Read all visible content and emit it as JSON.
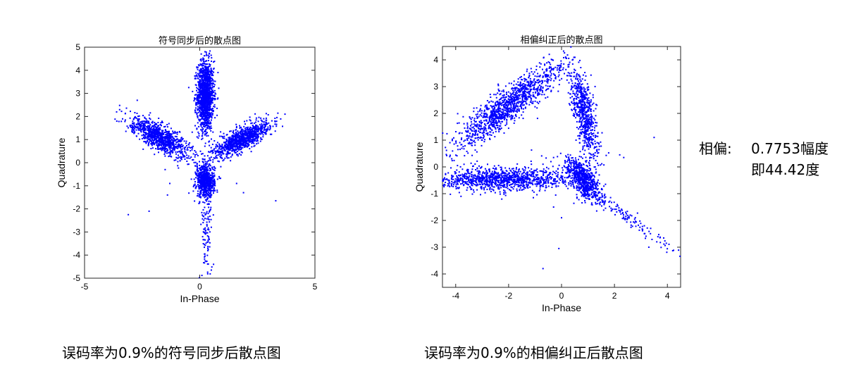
{
  "chart_data": [
    {
      "type": "scatter",
      "title": "符号同步后的散点图",
      "xlabel": "In-Phase",
      "ylabel": "Quadrature",
      "xlim": [
        -5,
        5
      ],
      "ylim": [
        -5,
        5
      ],
      "xticks": [
        -5,
        0,
        5
      ],
      "yticks": [
        -5,
        -4,
        -3,
        -2,
        -1,
        0,
        1,
        2,
        3,
        4,
        5
      ],
      "grid": false,
      "marker_color": "#0000ff",
      "clusters": [
        {
          "cx": 0.25,
          "cy": 2.9,
          "rx": 0.18,
          "ry": 0.75,
          "angle": 0,
          "n": 1400
        },
        {
          "cx": -1.75,
          "cy": 1.1,
          "rx": 0.25,
          "ry": 0.75,
          "angle": -60,
          "n": 1000
        },
        {
          "cx": 1.8,
          "cy": 1.0,
          "rx": 0.22,
          "ry": 0.65,
          "angle": 60,
          "n": 1000
        },
        {
          "cx": 0.25,
          "cy": -0.8,
          "rx": 0.2,
          "ry": 0.35,
          "angle": 0,
          "n": 700
        },
        {
          "cx": 0.3,
          "cy": -2.8,
          "rx": 0.12,
          "ry": 1.1,
          "angle": 0,
          "n": 120
        }
      ],
      "points": [
        [
          -3.1,
          -2.25
        ],
        [
          -2.2,
          -2.1
        ],
        [
          3.3,
          -1.65
        ],
        [
          -1.4,
          -1.4
        ],
        [
          -1.3,
          -0.9
        ],
        [
          1.6,
          -0.9
        ],
        [
          1.9,
          -1.3
        ],
        [
          -1.5,
          -0.3
        ],
        [
          0.5,
          -4.65
        ],
        [
          0.6,
          -4.4
        ],
        [
          -3.6,
          1.8
        ],
        [
          3.7,
          2.1
        ],
        [
          -1.1,
          0.1
        ],
        [
          1.2,
          0.2
        ],
        [
          0.35,
          0.3
        ],
        [
          -0.2,
          1.6
        ]
      ]
    },
    {
      "type": "scatter",
      "title": "相偏纠正后的散点图",
      "xlabel": "In-Phase",
      "ylabel": "Quadrature",
      "xlim": [
        -4.5,
        4.5
      ],
      "ylim": [
        -4.5,
        4.5
      ],
      "xticks": [
        -4,
        -2,
        0,
        2,
        4
      ],
      "yticks": [
        -4,
        -3,
        -2,
        -1,
        0,
        1,
        2,
        3,
        4
      ],
      "grid": false,
      "marker_color": "#0000ff",
      "clusters": [
        {
          "cx": -2.0,
          "cy": 2.3,
          "rx": 0.28,
          "ry": 1.2,
          "angle": 52,
          "n": 1200
        },
        {
          "cx": -2.3,
          "cy": -0.45,
          "rx": 1.25,
          "ry": 0.22,
          "angle": 0,
          "n": 1100
        },
        {
          "cx": 0.85,
          "cy": 2.0,
          "rx": 0.2,
          "ry": 0.85,
          "angle": -12,
          "n": 650
        },
        {
          "cx": 0.8,
          "cy": -0.45,
          "rx": 0.22,
          "ry": 0.45,
          "angle": -35,
          "n": 700
        },
        {
          "cx": 2.3,
          "cy": -1.8,
          "rx": 0.12,
          "ry": 1.5,
          "angle": -55,
          "n": 150
        }
      ],
      "points": [
        [
          -0.7,
          0.1
        ],
        [
          -0.3,
          0.35
        ],
        [
          -0.5,
          -0.6
        ],
        [
          -0.3,
          -1.5
        ],
        [
          0.0,
          -1.9
        ],
        [
          -0.7,
          -3.8
        ],
        [
          -0.1,
          -3.05
        ],
        [
          2.2,
          0.45
        ],
        [
          2.35,
          0.35
        ],
        [
          3.5,
          1.1
        ],
        [
          3.3,
          -3.0
        ],
        [
          3.6,
          -2.8
        ],
        [
          -3.8,
          -1.1
        ],
        [
          -3.9,
          -0.8
        ]
      ]
    }
  ],
  "note": {
    "label": "相偏:",
    "line1": "0.7753幅度",
    "line2": "即44.42度"
  },
  "captions": {
    "left": "误码率为0.9%的符号同步后散点图",
    "right": "误码率为0.9%的相偏纠正后散点图"
  }
}
